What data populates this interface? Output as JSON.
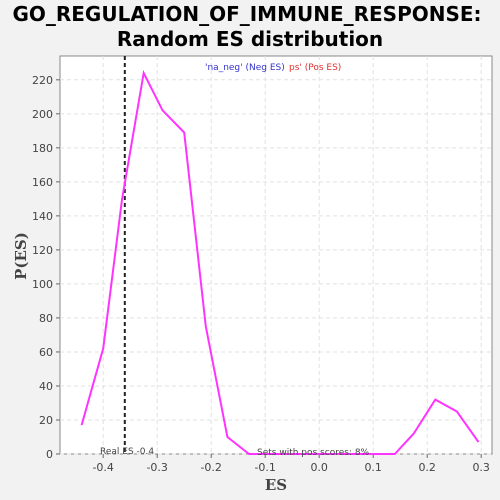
{
  "title_line1": "GO_REGULATION_OF_IMMUNE_RESPONSE:",
  "title_line2": "Random ES distribution",
  "legend": {
    "neg_label": "'na_neg' (Neg ES)",
    "pos_label": "ps' (Pos ES)",
    "neg_color": "#3333cc",
    "pos_color": "#e03030"
  },
  "annotations": {
    "real_es": "Real ES -0.4",
    "pos_scores": "Sets with pos scores: 8%"
  },
  "colors": {
    "line": "#ff33ff",
    "real_es_line": "#222222",
    "grid": "#e2e2e2",
    "plot_bg": "#ffffff",
    "page_bg": "#f2f2f2"
  },
  "chart_data": {
    "type": "line",
    "title": "GO_REGULATION_OF_IMMUNE_RESPONSE: Random ES distribution",
    "xlabel": "ES",
    "ylabel": "P(ES)",
    "xlim": [
      -0.48,
      0.32
    ],
    "ylim": [
      0,
      234
    ],
    "x_ticks": [
      -0.4,
      -0.3,
      -0.2,
      -0.1,
      0.0,
      0.1,
      0.2,
      0.3
    ],
    "x_tick_labels": [
      "-0.4",
      "-0.3",
      "-0.2",
      "-0.1",
      "0.0",
      "0.1",
      "0.2",
      "0.3"
    ],
    "y_ticks": [
      0,
      20,
      40,
      60,
      80,
      100,
      120,
      140,
      160,
      180,
      200,
      220
    ],
    "grid": true,
    "real_es": -0.36,
    "series": [
      {
        "x": [
          -0.44,
          -0.4,
          -0.365,
          -0.325,
          -0.29,
          -0.25,
          -0.21,
          -0.17,
          -0.13,
          -0.09,
          -0.05,
          0.0,
          0.05,
          0.1,
          0.14,
          0.175,
          0.215,
          0.255,
          0.295
        ],
        "y": [
          17,
          62,
          150,
          224,
          202,
          189,
          75,
          10,
          0,
          0,
          0,
          0,
          0,
          0,
          0,
          12,
          32,
          25,
          7
        ]
      }
    ]
  }
}
